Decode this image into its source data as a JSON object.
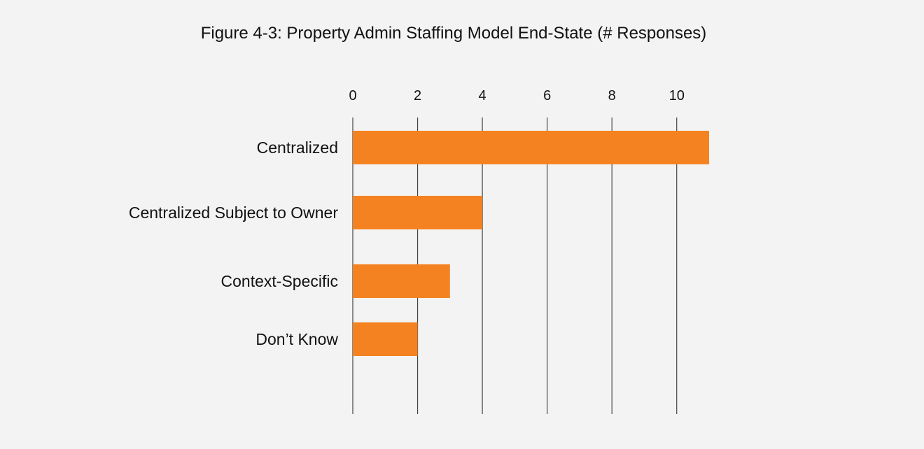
{
  "chart_data": {
    "type": "bar",
    "orientation": "horizontal",
    "title": "Figure 4-3: Property Admin Staffing Model End-State (# Responses)",
    "categories": [
      "Centralized",
      "Centralized Subject to Owner",
      "Context-Specific",
      "Don’t Know"
    ],
    "values": [
      11,
      4,
      3,
      2
    ],
    "x_ticks": [
      "0",
      "2",
      "4",
      "6",
      "8",
      "10"
    ],
    "xlim": [
      0,
      11
    ],
    "xaxis_position": "top",
    "grid": true,
    "bar_color": "#f58220",
    "xlabel": "",
    "ylabel": ""
  }
}
